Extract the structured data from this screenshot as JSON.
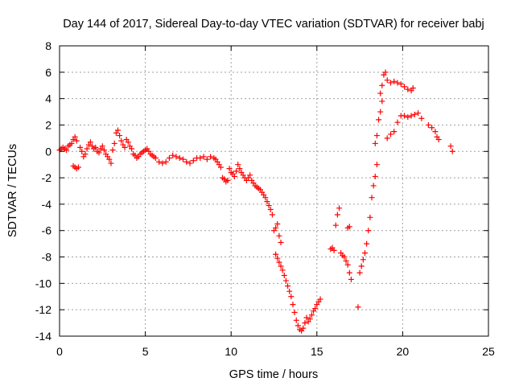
{
  "chart_data": {
    "type": "scatter",
    "title": "Day 144 of 2017, Sidereal Day-to-day VTEC variation (SDTVAR) for receiver babj",
    "xlabel": "GPS time / hours",
    "ylabel": "SDTVAR / TECUs",
    "xlim": [
      0,
      25
    ],
    "ylim": [
      -14,
      8
    ],
    "xticks": [
      0,
      5,
      10,
      15,
      20,
      25
    ],
    "yticks": [
      -14,
      -12,
      -10,
      -8,
      -6,
      -4,
      -2,
      0,
      2,
      4,
      6,
      8
    ],
    "grid": true,
    "marker": "+",
    "colors": {
      "series": "#ff0000",
      "grid": "#a0a0a0",
      "axes": "#000000"
    },
    "series": [
      {
        "name": "SDTVAR",
        "points": [
          [
            0.0,
            0.1
          ],
          [
            0.1,
            0.2
          ],
          [
            0.2,
            0.3
          ],
          [
            0.3,
            0.2
          ],
          [
            0.4,
            0.1
          ],
          [
            0.5,
            0.4
          ],
          [
            0.6,
            0.5
          ],
          [
            0.7,
            0.6
          ],
          [
            0.8,
            0.9
          ],
          [
            0.9,
            1.1
          ],
          [
            1.0,
            0.8
          ],
          [
            0.8,
            -1.1
          ],
          [
            0.9,
            -1.2
          ],
          [
            1.0,
            -1.3
          ],
          [
            1.1,
            -1.2
          ],
          [
            1.2,
            0.3
          ],
          [
            1.3,
            0.0
          ],
          [
            1.4,
            -0.4
          ],
          [
            1.5,
            -0.2
          ],
          [
            1.6,
            0.2
          ],
          [
            1.7,
            0.5
          ],
          [
            1.8,
            0.7
          ],
          [
            1.9,
            0.4
          ],
          [
            2.0,
            0.2
          ],
          [
            2.1,
            0.3
          ],
          [
            2.2,
            0.0
          ],
          [
            2.3,
            -0.1
          ],
          [
            2.4,
            0.2
          ],
          [
            2.5,
            0.4
          ],
          [
            2.6,
            0.1
          ],
          [
            2.7,
            -0.2
          ],
          [
            2.8,
            -0.4
          ],
          [
            2.9,
            -0.6
          ],
          [
            3.0,
            -0.9
          ],
          [
            3.1,
            0.1
          ],
          [
            3.2,
            0.6
          ],
          [
            3.3,
            1.4
          ],
          [
            3.4,
            1.6
          ],
          [
            3.5,
            1.2
          ],
          [
            3.6,
            0.8
          ],
          [
            3.7,
            0.5
          ],
          [
            3.8,
            0.3
          ],
          [
            3.9,
            0.9
          ],
          [
            4.0,
            0.7
          ],
          [
            4.1,
            0.4
          ],
          [
            4.2,
            0.2
          ],
          [
            4.3,
            -0.2
          ],
          [
            4.4,
            -0.3
          ],
          [
            4.5,
            -0.5
          ],
          [
            4.6,
            -0.4
          ],
          [
            4.7,
            -0.2
          ],
          [
            4.8,
            -0.1
          ],
          [
            4.9,
            0.0
          ],
          [
            5.0,
            0.1
          ],
          [
            5.1,
            0.2
          ],
          [
            5.2,
            0.0
          ],
          [
            5.3,
            -0.2
          ],
          [
            5.4,
            -0.3
          ],
          [
            5.5,
            -0.4
          ],
          [
            5.6,
            -0.5
          ],
          [
            5.8,
            -0.8
          ],
          [
            6.0,
            -0.9
          ],
          [
            6.2,
            -0.8
          ],
          [
            6.4,
            -0.5
          ],
          [
            6.6,
            -0.3
          ],
          [
            6.8,
            -0.4
          ],
          [
            7.0,
            -0.5
          ],
          [
            7.2,
            -0.6
          ],
          [
            7.4,
            -0.8
          ],
          [
            7.6,
            -0.9
          ],
          [
            7.8,
            -0.7
          ],
          [
            8.0,
            -0.5
          ],
          [
            8.2,
            -0.5
          ],
          [
            8.4,
            -0.4
          ],
          [
            8.6,
            -0.6
          ],
          [
            8.8,
            -0.4
          ],
          [
            9.0,
            -0.5
          ],
          [
            9.1,
            -0.6
          ],
          [
            9.2,
            -0.8
          ],
          [
            9.3,
            -1.0
          ],
          [
            9.4,
            -1.2
          ],
          [
            9.5,
            -2.0
          ],
          [
            9.6,
            -2.1
          ],
          [
            9.7,
            -2.3
          ],
          [
            9.8,
            -2.2
          ],
          [
            9.9,
            -1.3
          ],
          [
            10.0,
            -1.6
          ],
          [
            10.1,
            -1.7
          ],
          [
            10.2,
            -1.9
          ],
          [
            10.3,
            -1.5
          ],
          [
            10.4,
            -1.0
          ],
          [
            10.5,
            -1.3
          ],
          [
            10.6,
            -1.6
          ],
          [
            10.7,
            -1.8
          ],
          [
            10.8,
            -2.0
          ],
          [
            10.9,
            -2.2
          ],
          [
            11.0,
            -2.0
          ],
          [
            11.1,
            -1.8
          ],
          [
            11.2,
            -2.2
          ],
          [
            11.3,
            -2.4
          ],
          [
            11.4,
            -2.6
          ],
          [
            11.5,
            -2.7
          ],
          [
            11.6,
            -2.8
          ],
          [
            11.7,
            -2.9
          ],
          [
            11.8,
            -3.1
          ],
          [
            11.9,
            -3.3
          ],
          [
            12.0,
            -3.5
          ],
          [
            12.1,
            -3.8
          ],
          [
            12.2,
            -4.1
          ],
          [
            12.3,
            -4.4
          ],
          [
            12.4,
            -4.8
          ],
          [
            12.5,
            -6.0
          ],
          [
            12.6,
            -5.8
          ],
          [
            12.7,
            -5.5
          ],
          [
            12.8,
            -6.4
          ],
          [
            12.9,
            -6.9
          ],
          [
            12.6,
            -7.8
          ],
          [
            12.7,
            -8.1
          ],
          [
            12.8,
            -8.4
          ],
          [
            12.9,
            -8.7
          ],
          [
            13.0,
            -9.0
          ],
          [
            13.1,
            -9.4
          ],
          [
            13.2,
            -9.8
          ],
          [
            13.3,
            -10.2
          ],
          [
            13.4,
            -10.6
          ],
          [
            13.5,
            -11.0
          ],
          [
            13.6,
            -11.6
          ],
          [
            13.7,
            -12.2
          ],
          [
            13.8,
            -12.8
          ],
          [
            13.9,
            -13.2
          ],
          [
            14.0,
            -13.5
          ],
          [
            14.1,
            -13.6
          ],
          [
            14.2,
            -13.4
          ],
          [
            14.3,
            -13.0
          ],
          [
            14.4,
            -12.6
          ],
          [
            14.5,
            -12.9
          ],
          [
            14.6,
            -12.7
          ],
          [
            14.7,
            -12.4
          ],
          [
            14.8,
            -12.1
          ],
          [
            14.9,
            -11.9
          ],
          [
            15.0,
            -11.6
          ],
          [
            15.1,
            -11.4
          ],
          [
            15.2,
            -11.2
          ],
          [
            15.8,
            -7.4
          ],
          [
            15.9,
            -7.3
          ],
          [
            16.0,
            -7.5
          ],
          [
            16.1,
            -5.6
          ],
          [
            16.2,
            -4.8
          ],
          [
            16.3,
            -4.3
          ],
          [
            16.4,
            -7.7
          ],
          [
            16.5,
            -7.9
          ],
          [
            16.6,
            -8.0
          ],
          [
            16.7,
            -8.3
          ],
          [
            16.8,
            -8.6
          ],
          [
            16.9,
            -9.2
          ],
          [
            17.0,
            -9.7
          ],
          [
            16.8,
            -5.8
          ],
          [
            16.9,
            -5.7
          ],
          [
            17.4,
            -11.8
          ],
          [
            17.5,
            -9.2
          ],
          [
            17.6,
            -8.7
          ],
          [
            17.7,
            -8.2
          ],
          [
            17.8,
            -7.7
          ],
          [
            17.9,
            -7.0
          ],
          [
            18.0,
            -6.0
          ],
          [
            18.1,
            -5.0
          ],
          [
            18.2,
            -3.5
          ],
          [
            18.3,
            -2.6
          ],
          [
            18.4,
            -1.9
          ],
          [
            18.5,
            -1.0
          ],
          [
            18.4,
            0.6
          ],
          [
            18.5,
            1.2
          ],
          [
            18.6,
            2.4
          ],
          [
            18.7,
            3.0
          ],
          [
            18.8,
            3.8
          ],
          [
            18.7,
            4.4
          ],
          [
            18.8,
            5.0
          ],
          [
            18.9,
            5.8
          ],
          [
            19.0,
            6.0
          ],
          [
            19.1,
            5.4
          ],
          [
            19.3,
            5.2
          ],
          [
            19.5,
            5.3
          ],
          [
            19.7,
            5.2
          ],
          [
            19.9,
            5.1
          ],
          [
            20.1,
            4.9
          ],
          [
            20.3,
            4.7
          ],
          [
            20.5,
            4.6
          ],
          [
            20.6,
            4.8
          ],
          [
            19.1,
            1.0
          ],
          [
            19.3,
            1.3
          ],
          [
            19.5,
            1.5
          ],
          [
            19.7,
            2.2
          ],
          [
            19.9,
            2.7
          ],
          [
            20.1,
            2.7
          ],
          [
            20.3,
            2.6
          ],
          [
            20.5,
            2.7
          ],
          [
            20.7,
            2.8
          ],
          [
            20.9,
            2.9
          ],
          [
            21.1,
            2.5
          ],
          [
            21.5,
            2.0
          ],
          [
            21.7,
            1.8
          ],
          [
            21.9,
            1.5
          ],
          [
            22.0,
            1.1
          ],
          [
            22.1,
            0.9
          ],
          [
            22.8,
            0.4
          ],
          [
            22.9,
            0.0
          ]
        ]
      }
    ]
  }
}
